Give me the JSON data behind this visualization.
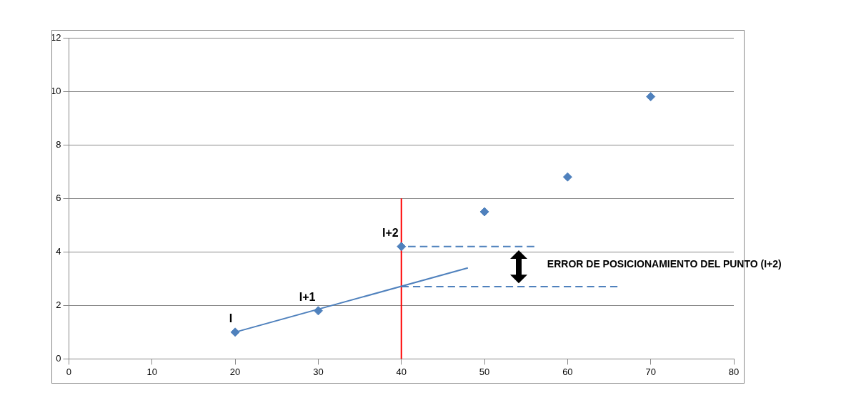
{
  "chart_data": {
    "type": "scatter",
    "xlim": [
      0,
      80
    ],
    "xticks": [
      0,
      10,
      20,
      30,
      40,
      50,
      60,
      70,
      80
    ],
    "ylim": [
      0,
      12
    ],
    "yticks": [
      0,
      2,
      4,
      6,
      8,
      10,
      12
    ],
    "grid": "y",
    "legend": false,
    "marker": "diamond",
    "series": [
      {
        "color": "#4f81bd",
        "x": [
          20,
          30,
          40,
          50,
          60,
          70
        ],
        "values": [
          1,
          1.8,
          4.2,
          5.5,
          6.8,
          9.8
        ]
      },
      {
        "type": "line",
        "color": "#4f81bd",
        "marker": "none",
        "line_style": "solid",
        "x": [
          20,
          48
        ],
        "values": [
          1,
          3.4
        ]
      },
      {
        "type": "line",
        "color": "#ff0000",
        "marker": "none",
        "line_style": "solid",
        "x": [
          40,
          40
        ],
        "values": [
          0,
          6
        ]
      },
      {
        "type": "line",
        "color": "#4f81bd",
        "marker": "none",
        "line_style": "dashed",
        "x": [
          40.8,
          56
        ],
        "values": [
          4.2,
          4.2
        ]
      },
      {
        "type": "line",
        "color": "#4f81bd",
        "marker": "none",
        "line_style": "dashed",
        "x": [
          40,
          66
        ],
        "values": [
          2.7,
          2.7
        ]
      }
    ],
    "annotations": [
      {
        "text": "I",
        "x": 20,
        "y": 1
      },
      {
        "text": "I+1",
        "x": 30,
        "y": 1.8
      },
      {
        "text": "I+2",
        "x": 40,
        "y": 4.2
      },
      "ERROR DE POSICIONAMIENTO DEL PUNTO (I+2)"
    ]
  }
}
